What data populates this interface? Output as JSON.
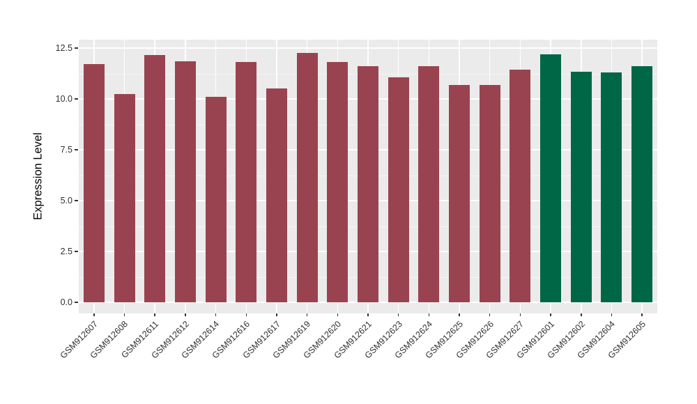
{
  "chart_data": {
    "type": "bar",
    "title": "",
    "xlabel": "",
    "ylabel": "Expression Level",
    "categories": [
      "GSM912607",
      "GSM912608",
      "GSM912611",
      "GSM912612",
      "GSM912614",
      "GSM912616",
      "GSM912617",
      "GSM912619",
      "GSM912620",
      "GSM912621",
      "GSM912623",
      "GSM912624",
      "GSM912625",
      "GSM912626",
      "GSM912627",
      "GSM912601",
      "GSM912602",
      "GSM912604",
      "GSM912605"
    ],
    "values": [
      11.7,
      10.25,
      12.15,
      11.85,
      10.1,
      11.8,
      10.5,
      12.25,
      11.8,
      11.6,
      11.05,
      11.6,
      10.7,
      10.7,
      11.45,
      12.2,
      11.35,
      11.3,
      11.6
    ],
    "bar_colors": [
      "#9A4350",
      "#9A4350",
      "#9A4350",
      "#9A4350",
      "#9A4350",
      "#9A4350",
      "#9A4350",
      "#9A4350",
      "#9A4350",
      "#9A4350",
      "#9A4350",
      "#9A4350",
      "#9A4350",
      "#9A4350",
      "#9A4350",
      "#006746",
      "#006746",
      "#006746",
      "#006746"
    ],
    "ytick_labels": [
      "0.0",
      "2.5",
      "5.0",
      "7.5",
      "10.0",
      "12.5"
    ],
    "ylim": [
      0,
      12.5
    ],
    "grid": "on",
    "legend_position": "none",
    "panel_background": "#EBEBEB",
    "gridline_color": "#FFFFFF",
    "axis_text_color": "#303030",
    "tick_mark_color": "#333333"
  }
}
